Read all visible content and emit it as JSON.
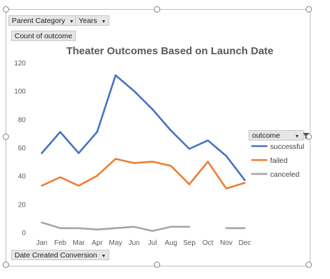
{
  "fields": {
    "parent_category": "Parent Category",
    "years": "Years",
    "value_field": "Count of outcome",
    "axis_field": "Date Created Conversion",
    "legend_field": "outcome"
  },
  "chart_data": {
    "type": "line",
    "title": "Theater Outcomes Based on Launch Date",
    "xlabel": "",
    "ylabel": "",
    "categories": [
      "Jan",
      "Feb",
      "Mar",
      "Apr",
      "May",
      "Jun",
      "Jul",
      "Aug",
      "Sep",
      "Oct",
      "Nov",
      "Dec"
    ],
    "ylim": [
      0,
      120
    ],
    "yticks": [
      0,
      20,
      40,
      60,
      80,
      100,
      120
    ],
    "grid": false,
    "legend_position": "right",
    "series": [
      {
        "name": "successful",
        "color": "#4472c4",
        "values": [
          56,
          71,
          56,
          71,
          111,
          100,
          87,
          72,
          59,
          65,
          54,
          37
        ]
      },
      {
        "name": "failed",
        "color": "#ed7d31",
        "values": [
          33,
          39,
          33,
          40,
          52,
          49,
          50,
          47,
          34,
          50,
          31,
          35
        ]
      },
      {
        "name": "canceled",
        "color": "#a5a5a5",
        "values": [
          7,
          3,
          3,
          2,
          3,
          4,
          1,
          4,
          4,
          null,
          3,
          3
        ]
      }
    ]
  }
}
